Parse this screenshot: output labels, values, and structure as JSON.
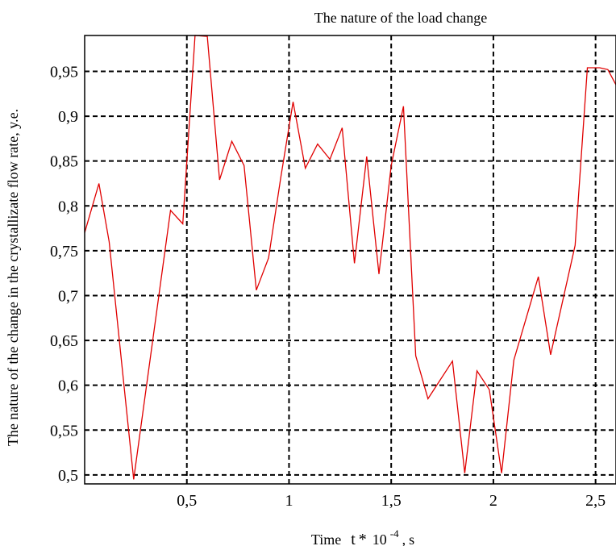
{
  "chart_data": {
    "type": "line",
    "title": "The nature of the load change",
    "xlabel": {
      "prefix": "Time",
      "variable": "t",
      "operator": "*",
      "base": "10",
      "exponent": "-4",
      "unit": "s"
    },
    "ylabel": "The nature of the change in the crystallizate flow rate, y.e.",
    "xlim": [
      0.0,
      2.6
    ],
    "ylim": [
      0.49,
      0.99
    ],
    "grid": true,
    "x_ticks": [
      0.5,
      1.0,
      1.5,
      2.0,
      2.5
    ],
    "x_tick_labels": [
      "0,5",
      "1",
      "1,5",
      "2",
      "2,5"
    ],
    "y_ticks": [
      0.5,
      0.55,
      0.6,
      0.65,
      0.7,
      0.75,
      0.8,
      0.85,
      0.9,
      0.95
    ],
    "y_tick_labels": [
      "0,5",
      "0,55",
      "0,6",
      "0,65",
      "0,7",
      "0,75",
      "0,8",
      "0,85",
      "0,9",
      "0,95"
    ],
    "series": [
      {
        "color": "#e00000",
        "x": [
          0.0,
          0.07,
          0.12,
          0.24,
          0.42,
          0.48,
          0.54,
          0.6,
          0.66,
          0.72,
          0.78,
          0.84,
          0.9,
          0.96,
          1.02,
          1.08,
          1.14,
          1.2,
          1.26,
          1.32,
          1.38,
          1.44,
          1.5,
          1.56,
          1.62,
          1.68,
          1.8,
          1.86,
          1.92,
          1.98,
          2.04,
          2.1,
          2.22,
          2.28,
          2.4,
          2.46,
          2.52,
          2.56,
          2.6
        ],
        "y": [
          0.77,
          0.825,
          0.76,
          0.495,
          0.795,
          0.78,
          0.99,
          0.989,
          0.829,
          0.872,
          0.845,
          0.706,
          0.742,
          0.832,
          0.916,
          0.842,
          0.869,
          0.852,
          0.887,
          0.736,
          0.855,
          0.724,
          0.845,
          0.911,
          0.633,
          0.585,
          0.627,
          0.502,
          0.616,
          0.595,
          0.502,
          0.628,
          0.721,
          0.634,
          0.756,
          0.954,
          0.954,
          0.952,
          0.935
        ]
      }
    ]
  }
}
